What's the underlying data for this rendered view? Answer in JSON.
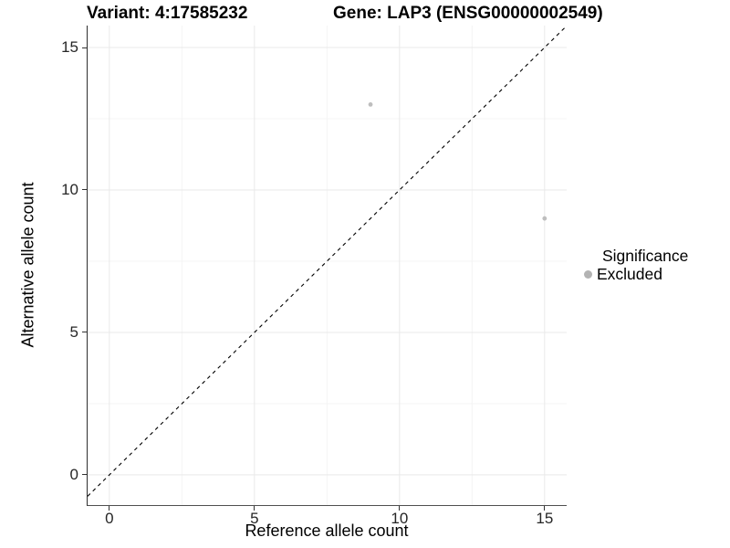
{
  "figure": {
    "titles": {
      "variant": "Variant: 4:17585232",
      "gene": "Gene: LAP3 (ENSG00000002549)"
    }
  },
  "chart_data": {
    "type": "scatter",
    "title": "Variant: 4:17585232    Gene: LAP3 (ENSG00000002549)",
    "xlabel": "Reference allele count",
    "ylabel": "Alternative allele count",
    "x_ticks": [
      0,
      5,
      10,
      15
    ],
    "y_ticks": [
      0,
      5,
      10,
      15
    ],
    "x_minor_ticks": [
      2.5,
      7.5,
      12.5
    ],
    "y_minor_ticks": [
      2.5,
      7.5,
      12.5
    ],
    "x_range": [
      -0.75,
      15.76
    ],
    "y_range": [
      -1.06,
      15.77
    ],
    "grid": {
      "on": true,
      "major_color": "#e9e9e9",
      "minor_color": "#f4f4f4"
    },
    "identity_line": {
      "equation": "y = x",
      "style": "dashed",
      "color": "#000000"
    },
    "series": [
      {
        "name": "Excluded",
        "marker_color": "#bebebe",
        "points": [
          {
            "x": 9,
            "y": 13
          },
          {
            "x": 15,
            "y": 9
          }
        ]
      }
    ],
    "legend": {
      "title": "Significance",
      "position": "right",
      "entries": [
        {
          "label": "Excluded",
          "marker": "circle",
          "color": "#b3b3b3"
        }
      ]
    }
  }
}
